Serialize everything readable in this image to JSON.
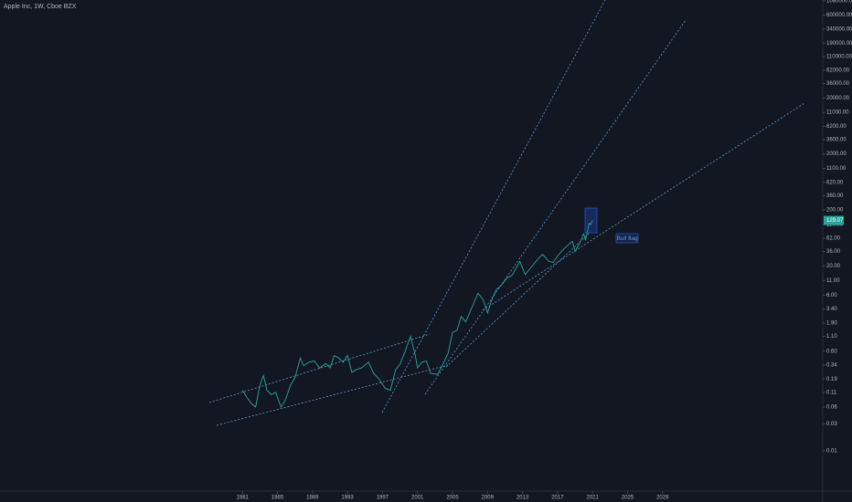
{
  "chart_data": {
    "type": "line",
    "title": "Apple Inc, 1W, Cboe BZX",
    "annotation": "Bull flag",
    "log_scale": true,
    "grid": false,
    "color": "#26a69a",
    "x": [
      1981.0,
      1981.5,
      1982.0,
      1982.5,
      1983.0,
      1983.4,
      1983.8,
      1984.3,
      1984.8,
      1985.4,
      1985.9,
      1986.5,
      1987.0,
      1987.6,
      1988.0,
      1988.6,
      1989.2,
      1989.8,
      1990.5,
      1991.0,
      1991.5,
      1992.0,
      1992.5,
      1993.0,
      1993.5,
      1994.0,
      1994.6,
      1995.4,
      1996.0,
      1996.6,
      1997.3,
      1997.9,
      1998.5,
      1999.0,
      1999.6,
      2000.2,
      2000.7,
      2001.0,
      2001.5,
      2002.0,
      2002.5,
      2003.3,
      2003.9,
      2004.5,
      2005.0,
      2005.5,
      2006.0,
      2006.5,
      2007.0,
      2007.9,
      2008.5,
      2009.0,
      2009.5,
      2010.0,
      2010.6,
      2011.2,
      2011.8,
      2012.7,
      2013.3,
      2014.0,
      2014.8,
      2015.3,
      2016.0,
      2016.5,
      2017.0,
      2017.7,
      2018.7,
      2019.0,
      2019.5,
      2020.0,
      2020.2,
      2020.6,
      2020.8,
      2021.0
    ],
    "values": [
      0.12,
      0.09,
      0.07,
      0.06,
      0.15,
      0.22,
      0.12,
      0.1,
      0.11,
      0.06,
      0.08,
      0.15,
      0.2,
      0.45,
      0.33,
      0.38,
      0.4,
      0.3,
      0.36,
      0.3,
      0.5,
      0.45,
      0.38,
      0.5,
      0.25,
      0.28,
      0.3,
      0.38,
      0.24,
      0.19,
      0.13,
      0.12,
      0.28,
      0.35,
      0.6,
      1.1,
      0.55,
      0.3,
      0.38,
      0.4,
      0.24,
      0.23,
      0.35,
      0.55,
      1.3,
      1.4,
      2.5,
      2.0,
      3.0,
      6.5,
      5.0,
      2.9,
      5.0,
      7.5,
      9.0,
      12,
      13.5,
      24,
      14,
      19,
      27,
      32,
      24,
      23,
      30,
      40,
      55,
      36,
      50,
      75,
      57,
      115,
      110,
      129.07
    ],
    "xlim": [
      1953.3,
      2047.3
    ],
    "xticks": [
      1981,
      1985,
      1989,
      1993,
      1997,
      2001,
      2005,
      2009,
      2013,
      2017,
      2021,
      2025,
      2029
    ],
    "ylim": [
      0.0019,
      1120000
    ],
    "yticks": [
      {
        "value": 1080000,
        "label": "1080000.00"
      },
      {
        "value": 600000,
        "label": "600000.00"
      },
      {
        "value": 340000,
        "label": "340000.00"
      },
      {
        "value": 190000,
        "label": "190000.00"
      },
      {
        "value": 110000,
        "label": "110000.00"
      },
      {
        "value": 62000,
        "label": "62000.00"
      },
      {
        "value": 36000,
        "label": "36000.00"
      },
      {
        "value": 20000,
        "label": "20000.00"
      },
      {
        "value": 11000,
        "label": "11000.00"
      },
      {
        "value": 6200,
        "label": "6200.00"
      },
      {
        "value": 3600,
        "label": "3600.00"
      },
      {
        "value": 2000,
        "label": "2000.00"
      },
      {
        "value": 1100,
        "label": "1100.00"
      },
      {
        "value": 620,
        "label": "620.00"
      },
      {
        "value": 360,
        "label": "360.00"
      },
      {
        "value": 200,
        "label": "200.00"
      },
      {
        "value": 110,
        "label": "110.00"
      },
      {
        "value": 62,
        "label": "62.00"
      },
      {
        "value": 36,
        "label": "36.00"
      },
      {
        "value": 20,
        "label": "20.00"
      },
      {
        "value": 11,
        "label": "11.00"
      },
      {
        "value": 6,
        "label": "6.00"
      },
      {
        "value": 3.4,
        "label": "3.40"
      },
      {
        "value": 1.9,
        "label": "1.90"
      },
      {
        "value": 1.1,
        "label": "1.10"
      },
      {
        "value": 0.6,
        "label": "0.60"
      },
      {
        "value": 0.34,
        "label": "0.34"
      },
      {
        "value": 0.19,
        "label": "0.19"
      },
      {
        "value": 0.11,
        "label": "0.11"
      },
      {
        "value": 0.06,
        "label": "0.06"
      },
      {
        "value": 0.03,
        "label": "0.03"
      },
      {
        "value": 0.01,
        "label": "0.01"
      }
    ]
  }
}
